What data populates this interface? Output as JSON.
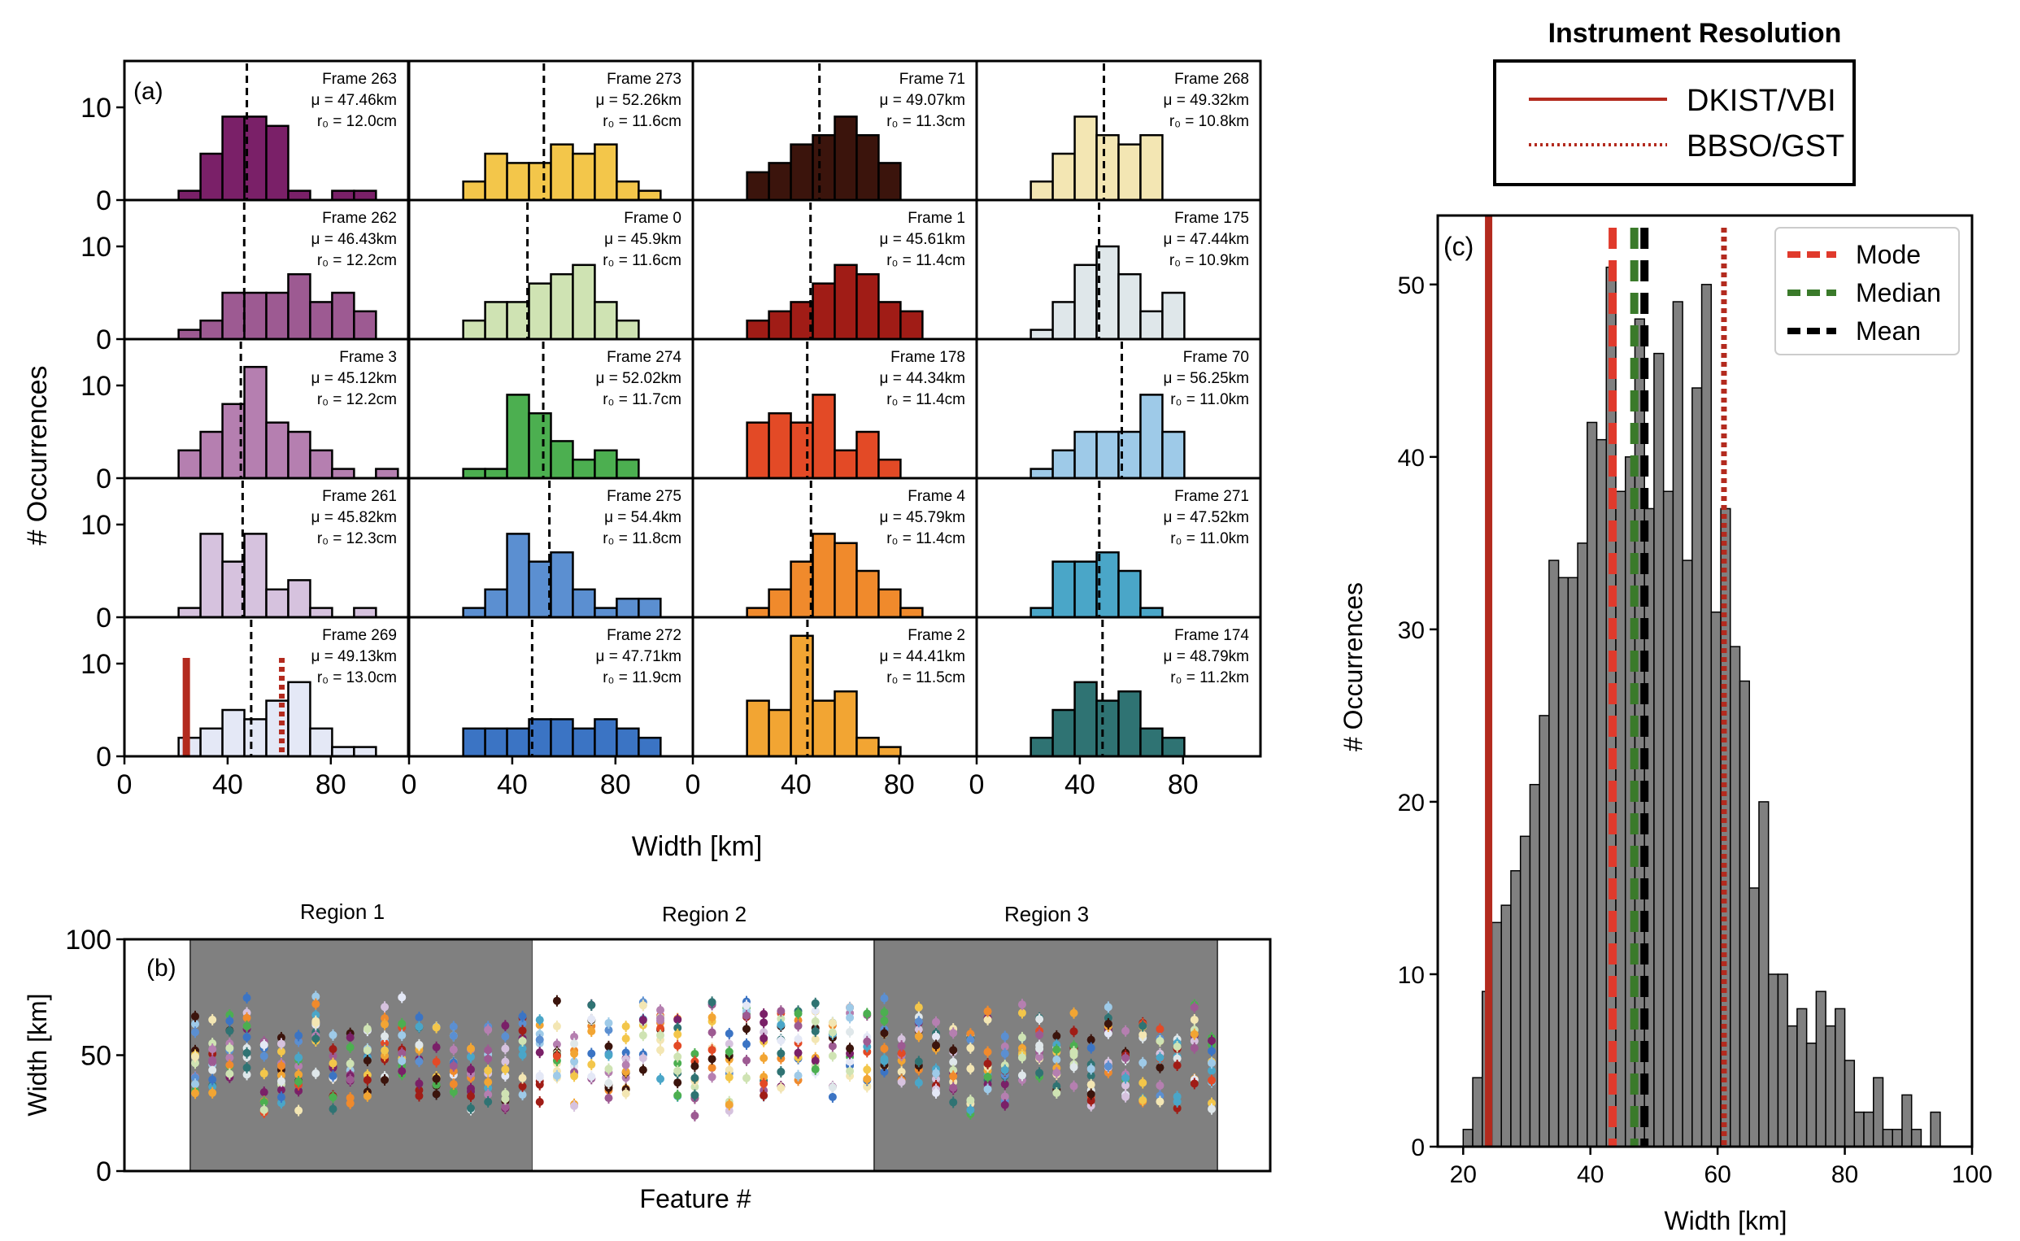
{
  "panel_a": {
    "label": "(a)",
    "xlabel": "Width [km]",
    "ylabel": "# Occurrences",
    "xticks": [
      "0",
      "40",
      "80"
    ],
    "yticks": [
      "0",
      "10"
    ],
    "grid": [
      [
        {
          "frame": "Frame 263",
          "mu": "47.46km",
          "r0": "12.0cm",
          "color": "#7a2068",
          "mean": 47.46,
          "counts": [
            1,
            5,
            9,
            9,
            8,
            1,
            0,
            1,
            1,
            0
          ]
        },
        {
          "frame": "Frame 273",
          "mu": "52.26km",
          "r0": "11.6cm",
          "color": "#f3c64a",
          "mean": 52.26,
          "counts": [
            2,
            5,
            4,
            4,
            6,
            5,
            6,
            2,
            1,
            0
          ]
        },
        {
          "frame": "Frame 71",
          "mu": "49.07km",
          "r0": "11.3cm",
          "color": "#3b140c",
          "mean": 49.07,
          "counts": [
            3,
            4,
            6,
            7,
            9,
            7,
            4,
            0,
            0,
            0
          ]
        },
        {
          "frame": "Frame 268",
          "mu": "49.32km",
          "r0": "10.8km",
          "color": "#f3e6b3",
          "mean": 49.32,
          "counts": [
            2,
            5,
            9,
            7,
            6,
            7,
            0,
            0,
            0,
            0
          ]
        }
      ],
      [
        {
          "frame": "Frame 262",
          "mu": "46.43km",
          "r0": "12.2cm",
          "color": "#9d5a92",
          "mean": 46.43,
          "counts": [
            1,
            2,
            5,
            5,
            5,
            7,
            4,
            5,
            3,
            0,
            0,
            1
          ]
        },
        {
          "frame": "Frame 0",
          "mu": "45.9km",
          "r0": "11.6cm",
          "color": "#cfe3b3",
          "mean": 45.9,
          "counts": [
            2,
            4,
            4,
            6,
            7,
            8,
            4,
            2,
            0,
            0
          ]
        },
        {
          "frame": "Frame 1",
          "mu": "45.61km",
          "r0": "11.4cm",
          "color": "#a01c16",
          "mean": 45.61,
          "counts": [
            2,
            3,
            4,
            6,
            8,
            7,
            4,
            3,
            0,
            0
          ]
        },
        {
          "frame": "Frame 175",
          "mu": "47.44km",
          "r0": "10.9km",
          "color": "#dfe7ea",
          "mean": 47.44,
          "counts": [
            1,
            4,
            8,
            10,
            7,
            3,
            5,
            0,
            0,
            0
          ]
        }
      ],
      [
        {
          "frame": "Frame 3",
          "mu": "45.12km",
          "r0": "12.2cm",
          "color": "#b57fb0",
          "mean": 45.12,
          "counts": [
            3,
            5,
            8,
            12,
            6,
            5,
            3,
            1,
            0,
            1
          ]
        },
        {
          "frame": "Frame 274",
          "mu": "52.02km",
          "r0": "11.7cm",
          "color": "#4caf50",
          "mean": 52.02,
          "counts": [
            1,
            1,
            9,
            7,
            4,
            2,
            3,
            2,
            0,
            0
          ]
        },
        {
          "frame": "Frame 178",
          "mu": "44.34km",
          "r0": "11.4cm",
          "color": "#e34a26",
          "mean": 44.34,
          "counts": [
            6,
            7,
            6,
            9,
            3,
            5,
            2,
            0,
            0,
            0
          ]
        },
        {
          "frame": "Frame 70",
          "mu": "56.25km",
          "r0": "11.0km",
          "color": "#9ecae8",
          "mean": 56.25,
          "counts": [
            1,
            3,
            5,
            5,
            5,
            9,
            5,
            0,
            0,
            0
          ]
        }
      ],
      [
        {
          "frame": "Frame 261",
          "mu": "45.82km",
          "r0": "12.3cm",
          "color": "#d6c2de",
          "mean": 45.82,
          "counts": [
            1,
            9,
            6,
            9,
            3,
            4,
            1,
            0,
            1,
            0
          ]
        },
        {
          "frame": "Frame 275",
          "mu": "54.4km",
          "r0": "11.8cm",
          "color": "#5b8fd1",
          "mean": 54.4,
          "counts": [
            1,
            3,
            9,
            6,
            7,
            3,
            1,
            2,
            2,
            0
          ]
        },
        {
          "frame": "Frame 4",
          "mu": "45.79km",
          "r0": "11.4cm",
          "color": "#f08a2c",
          "mean": 45.79,
          "counts": [
            1,
            3,
            6,
            9,
            8,
            5,
            3,
            1,
            0,
            0
          ]
        },
        {
          "frame": "Frame 271",
          "mu": "47.52km",
          "r0": "11.0km",
          "color": "#4aa6c8",
          "mean": 47.52,
          "counts": [
            1,
            6,
            6,
            7,
            5,
            1,
            0,
            0,
            0,
            0
          ]
        }
      ],
      [
        {
          "frame": "Frame 269",
          "mu": "49.13km",
          "r0": "13.0cm",
          "color": "#e4e8f6",
          "mean": 49.13,
          "counts": [
            2,
            3,
            5,
            4,
            6,
            8,
            3,
            1,
            1,
            0
          ],
          "dkist": 24,
          "bbso": 61
        },
        {
          "frame": "Frame 272",
          "mu": "47.71km",
          "r0": "11.9cm",
          "color": "#3b74c4",
          "mean": 47.71,
          "counts": [
            3,
            3,
            3,
            4,
            4,
            3,
            4,
            3,
            2,
            0
          ]
        },
        {
          "frame": "Frame 2",
          "mu": "44.41km",
          "r0": "11.5cm",
          "color": "#f2a533",
          "mean": 44.41,
          "counts": [
            6,
            5,
            13,
            6,
            7,
            2,
            1,
            0,
            0,
            0
          ]
        },
        {
          "frame": "Frame 174",
          "mu": "48.79km",
          "r0": "11.2km",
          "color": "#2f7373",
          "mean": 48.79,
          "counts": [
            2,
            5,
            8,
            6,
            7,
            3,
            2,
            0,
            0,
            0
          ]
        }
      ]
    ]
  },
  "panel_b": {
    "label": "(b)",
    "xlabel": "Feature #",
    "ylabel": "Width [km]",
    "yticks": [
      "0",
      "50",
      "100"
    ],
    "regions": [
      "Region 1",
      "Region 2",
      "Region 3"
    ],
    "ylim": [
      0,
      100
    ]
  },
  "panel_c": {
    "label": "(c)",
    "xlabel": "Width [km]",
    "ylabel": "# Occurrences",
    "xticks": [
      "20",
      "40",
      "60",
      "80",
      "100"
    ],
    "yticks": [
      "0",
      "10",
      "20",
      "30",
      "40",
      "50"
    ],
    "legend_title": "Instrument Resolution",
    "legend_instr": [
      "DKIST/VBI",
      "BBSO/GST"
    ],
    "legend_stats": [
      "Mode",
      "Median",
      "Mean"
    ],
    "colors": {
      "dkist": "#b32a1e",
      "mode": "#e03a2c",
      "median": "#3a7a2a",
      "mean": "#000000",
      "bars": "#808080"
    }
  },
  "chart_data": [
    {
      "type": "bar",
      "title": "",
      "xlabel": "Width [km]",
      "ylabel": "# Occurrences",
      "xlim": [
        16,
        100
      ],
      "ylim": [
        0,
        54
      ],
      "bin_start": 20,
      "bin_width": 1.5,
      "values": [
        1,
        4,
        9,
        13,
        14,
        16,
        18,
        21,
        25,
        34,
        33,
        33,
        35,
        42,
        41,
        51,
        38,
        40,
        48,
        37,
        46,
        38,
        49,
        34,
        44,
        50,
        31,
        37,
        29,
        27,
        15,
        20,
        10,
        10,
        7,
        8,
        6,
        9,
        7,
        8,
        5,
        2,
        2,
        4,
        1,
        1,
        3,
        1,
        0,
        2
      ],
      "lines": {
        "dkist": 24,
        "bbso": 61,
        "mode": 43.5,
        "median": 46.9,
        "mean": 48.5
      }
    },
    {
      "type": "scatter",
      "xlabel": "Feature #",
      "ylabel": "Width [km]",
      "ylim": [
        0,
        100
      ],
      "regions": [
        "Region 1",
        "Region 2",
        "Region 3"
      ]
    }
  ]
}
